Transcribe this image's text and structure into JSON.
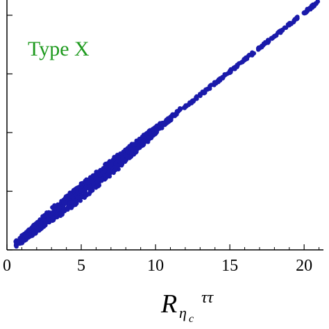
{
  "chart_data": {
    "type": "scatter",
    "annotation": "Type X",
    "xlabel": {
      "main": "R",
      "sub": "η",
      "subsub": "c",
      "sup": "ττ"
    },
    "xticks": [
      0,
      5,
      10,
      15,
      20
    ],
    "xlim": [
      0,
      21.3
    ],
    "ylim": [
      0,
      21.3
    ],
    "colors": {
      "points": "#1a1aaa",
      "highlight": "#7070e0",
      "annotation": "#1e9a1e",
      "axis": "#000000"
    },
    "series": [
      {
        "points": [
          [
            0.8,
            0.7
          ],
          [
            1.0,
            0.9
          ],
          [
            1.2,
            1.1
          ],
          [
            1.5,
            1.4
          ],
          [
            1.8,
            1.7
          ],
          [
            2.0,
            1.9
          ],
          [
            2.3,
            2.2
          ],
          [
            2.5,
            2.5
          ],
          [
            2.8,
            2.7
          ],
          [
            3.0,
            2.9
          ],
          [
            3.3,
            3.3
          ],
          [
            3.5,
            3.4
          ],
          [
            3.8,
            3.8
          ],
          [
            4.0,
            4.0
          ],
          [
            4.3,
            4.2
          ],
          [
            4.5,
            4.5
          ],
          [
            4.8,
            4.7
          ],
          [
            5.0,
            5.0
          ],
          [
            5.3,
            5.2
          ],
          [
            5.5,
            5.5
          ],
          [
            5.8,
            5.8
          ],
          [
            6.0,
            6.0
          ],
          [
            6.3,
            6.2
          ],
          [
            6.5,
            6.6
          ],
          [
            6.8,
            6.8
          ],
          [
            7.0,
            7.1
          ],
          [
            7.3,
            7.3
          ],
          [
            7.5,
            7.6
          ],
          [
            7.8,
            7.8
          ],
          [
            8.0,
            8.1
          ],
          [
            8.3,
            8.4
          ],
          [
            8.5,
            8.6
          ],
          [
            8.8,
            8.9
          ],
          [
            9.0,
            9.2
          ],
          [
            9.3,
            9.4
          ],
          [
            9.5,
            9.7
          ],
          [
            9.8,
            10.0
          ],
          [
            10.0,
            10.2
          ],
          [
            10.3,
            10.5
          ],
          [
            10.5,
            10.8
          ],
          [
            10.8,
            11.0
          ],
          [
            11.0,
            11.3
          ],
          [
            11.3,
            11.5
          ],
          [
            11.5,
            11.8
          ],
          [
            12.0,
            12.2
          ],
          [
            12.5,
            12.7
          ],
          [
            13.0,
            13.2
          ],
          [
            13.5,
            13.7
          ],
          [
            14.0,
            14.2
          ],
          [
            14.5,
            14.7
          ],
          [
            15.0,
            15.2
          ],
          [
            15.5,
            15.7
          ],
          [
            16.0,
            16.2
          ],
          [
            16.5,
            16.7
          ],
          [
            17.0,
            17.2
          ],
          [
            17.5,
            17.7
          ],
          [
            18.0,
            18.2
          ],
          [
            18.5,
            18.7
          ],
          [
            19.0,
            19.2
          ],
          [
            19.5,
            19.7
          ],
          [
            20.0,
            20.2
          ],
          [
            20.4,
            20.6
          ],
          [
            20.8,
            21.0
          ]
        ]
      }
    ]
  }
}
